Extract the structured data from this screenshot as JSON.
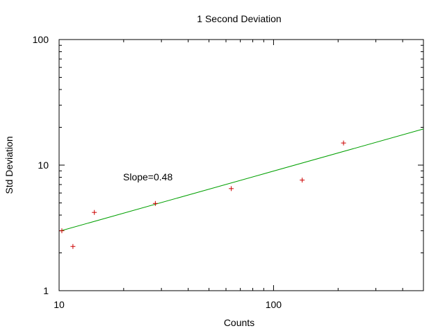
{
  "chart_data": {
    "type": "scatter",
    "title": "1 Second Deviation",
    "xlabel": "Counts",
    "ylabel": "Std Deviation",
    "x_scale": "log",
    "y_scale": "log",
    "xlim": [
      10,
      500
    ],
    "ylim": [
      1,
      100
    ],
    "x_ticks": [
      {
        "value": 10,
        "label": "10"
      },
      {
        "value": 100,
        "label": "100"
      }
    ],
    "y_ticks": [
      {
        "value": 1,
        "label": "1"
      },
      {
        "value": 10,
        "label": "10"
      },
      {
        "value": 100,
        "label": "100"
      }
    ],
    "grid": false,
    "annotation": "Slope=0.48",
    "series": [
      {
        "type": "scatter",
        "marker": "+",
        "color": "#cc0000",
        "points": [
          {
            "x": 10.3,
            "y": 3.0
          },
          {
            "x": 11.6,
            "y": 2.25
          },
          {
            "x": 14.6,
            "y": 4.2
          },
          {
            "x": 28.1,
            "y": 4.95
          },
          {
            "x": 63.5,
            "y": 6.5
          },
          {
            "x": 136,
            "y": 7.6
          },
          {
            "x": 212,
            "y": 15.0
          }
        ]
      },
      {
        "type": "line",
        "color": "#00a000",
        "points": [
          {
            "x": 10.2,
            "y": 3.0
          },
          {
            "x": 500,
            "y": 19.4
          }
        ]
      }
    ]
  }
}
